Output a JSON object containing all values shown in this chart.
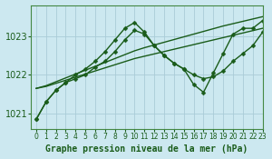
{
  "title": "Graphe pression niveau de la mer (hPa)",
  "background_color": "#cce8f0",
  "grid_color": "#aaccd8",
  "line_color": "#1a5c1a",
  "xlim": [
    -0.5,
    23
  ],
  "ylim": [
    1020.6,
    1023.8
  ],
  "yticks": [
    1021,
    1022,
    1023
  ],
  "xticks": [
    0,
    1,
    2,
    3,
    4,
    5,
    6,
    7,
    8,
    9,
    10,
    11,
    12,
    13,
    14,
    15,
    16,
    17,
    18,
    19,
    20,
    21,
    22,
    23
  ],
  "series": [
    {
      "y": [
        1020.85,
        1021.3,
        1021.6,
        1021.8,
        1021.9,
        1022.0,
        1022.2,
        1022.35,
        1022.6,
        1022.9,
        1023.15,
        1023.05,
        1022.75,
        1022.5,
        1022.3,
        1022.15,
        1022.0,
        1021.9,
        1021.95,
        1022.1,
        1022.35,
        1022.55,
        1022.75,
        1023.1
      ],
      "marker": "D",
      "markersize": 2.5,
      "linewidth": 1.0,
      "has_markers": true
    },
    {
      "y": [
        1021.65,
        1021.7,
        1021.78,
        1021.86,
        1021.94,
        1022.02,
        1022.1,
        1022.18,
        1022.26,
        1022.34,
        1022.42,
        1022.48,
        1022.54,
        1022.6,
        1022.66,
        1022.72,
        1022.78,
        1022.84,
        1022.9,
        1022.96,
        1023.02,
        1023.08,
        1023.14,
        1023.2
      ],
      "marker": null,
      "markersize": 0,
      "linewidth": 1.0,
      "has_markers": false
    },
    {
      "y": [
        1021.65,
        1021.72,
        1021.82,
        1021.92,
        1022.02,
        1022.12,
        1022.22,
        1022.32,
        1022.42,
        1022.52,
        1022.62,
        1022.7,
        1022.77,
        1022.84,
        1022.91,
        1022.98,
        1023.05,
        1023.12,
        1023.19,
        1023.26,
        1023.32,
        1023.38,
        1023.44,
        1023.5
      ],
      "marker": null,
      "markersize": 0,
      "linewidth": 1.0,
      "has_markers": false
    },
    {
      "y": [
        1020.85,
        1021.3,
        1021.6,
        1021.8,
        1022.0,
        1022.15,
        1022.35,
        1022.6,
        1022.9,
        1023.2,
        1023.35,
        1023.1,
        1022.75,
        1022.5,
        1022.3,
        1022.15,
        1021.75,
        1021.55,
        1022.05,
        1022.55,
        1023.05,
        1023.2,
        1023.2,
        1023.4
      ],
      "marker": "D",
      "markersize": 2.5,
      "linewidth": 1.0,
      "has_markers": true
    }
  ],
  "figwidth": 3.0,
  "figheight": 1.75,
  "dpi": 100,
  "xlabel_fontsize": 7.0,
  "ytick_fontsize": 7,
  "xtick_fontsize": 5.5
}
